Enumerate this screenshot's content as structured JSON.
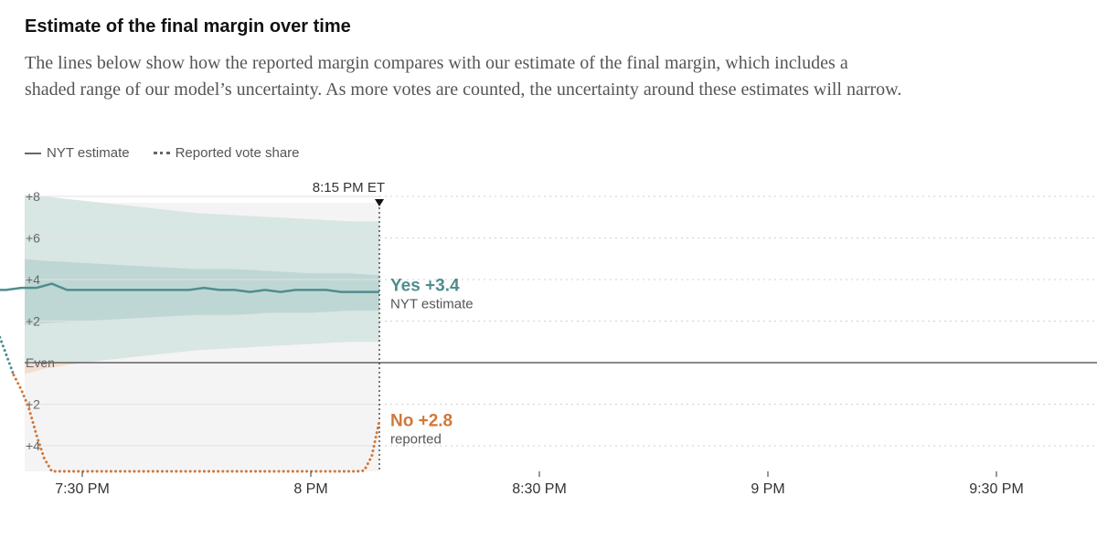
{
  "title": "Estimate of the final margin over time",
  "description": "The lines below show how the reported margin compares with our estimate of the final margin, which includes a shaded range of our model’s uncertainty. As more votes are counted, the uncertainty around these estimates will narrow.",
  "legend": {
    "estimate_label": "NYT estimate",
    "reported_label": "Reported vote share"
  },
  "colors": {
    "yes": "#4f8d8d",
    "no": "#d0783a",
    "band_outer": "#d8e6e4",
    "band_inner": "#bfd7d4",
    "band_no": "#f3dfd0"
  },
  "chart_data": {
    "type": "line",
    "x_unit": "minutes after 7:00 PM ET",
    "xlim": [
      16,
      150
    ],
    "ylim": [
      -7,
      8.5
    ],
    "y_ticks": [
      {
        "value": 8,
        "label": "+8"
      },
      {
        "value": 6,
        "label": "+6"
      },
      {
        "value": 4,
        "label": "+4"
      },
      {
        "value": 2,
        "label": "+2"
      },
      {
        "value": 0,
        "label": "Even"
      },
      {
        "value": -2,
        "label": "+2"
      },
      {
        "value": -4,
        "label": "+4"
      }
    ],
    "x_ticks": [
      {
        "value": 30,
        "label": "7:30 PM"
      },
      {
        "value": 60,
        "label": "8 PM"
      },
      {
        "value": 90,
        "label": "8:30 PM"
      },
      {
        "value": 120,
        "label": "9 PM"
      },
      {
        "value": 150,
        "label": "9:30 PM"
      }
    ],
    "current_time": {
      "value": 69,
      "label": "8:15 PM ET"
    },
    "estimate_label": {
      "value": "Yes +3.4",
      "sub": "NYT estimate"
    },
    "reported_label": {
      "value": "No +2.8",
      "sub": "reported"
    },
    "series": [
      {
        "name": "NYT estimate",
        "x": [
          16,
          17,
          18,
          20,
          22,
          24,
          26,
          28,
          30,
          32,
          34,
          36,
          38,
          40,
          42,
          44,
          46,
          48,
          50,
          52,
          54,
          56,
          58,
          60,
          62,
          64,
          66,
          68,
          69
        ],
        "y": [
          3.6,
          3.6,
          3.5,
          3.5,
          3.6,
          3.6,
          3.8,
          3.5,
          3.5,
          3.5,
          3.5,
          3.5,
          3.5,
          3.5,
          3.5,
          3.5,
          3.6,
          3.5,
          3.5,
          3.4,
          3.5,
          3.4,
          3.5,
          3.5,
          3.5,
          3.4,
          3.4,
          3.4,
          3.4
        ]
      },
      {
        "name": "Reported vote share",
        "x": [
          16,
          17,
          18,
          19,
          20,
          21,
          22,
          23,
          24,
          25,
          26,
          27,
          28,
          29,
          30,
          31,
          32,
          33,
          34,
          50,
          51,
          52,
          53,
          54,
          55,
          56,
          57,
          58,
          59,
          60,
          61,
          62,
          63,
          64,
          65,
          66,
          67,
          68,
          69
        ],
        "y": [
          3.6,
          3.2,
          2.6,
          1.4,
          0.4,
          -0.6,
          -1.3,
          -2.2,
          -3.5,
          -4.6,
          -5.3,
          -6.0,
          -6.8,
          -7.2,
          -7.4,
          -7.5,
          -7.6,
          -7.6,
          -7.6,
          -7.6,
          -7.3,
          -6.8,
          -6.6,
          -6.8,
          -6.7,
          -6.6,
          -6.5,
          -6.6,
          -6.1,
          -6.1,
          -6.0,
          -5.9,
          -5.7,
          -5.6,
          -5.5,
          -5.4,
          -5.2,
          -4.5,
          -2.8
        ]
      }
    ],
    "uncertainty": {
      "x": [
        16,
        18,
        20,
        22,
        25,
        30,
        35,
        40,
        45,
        50,
        55,
        60,
        65,
        69
      ],
      "outer_upper": [
        8.2,
        8.1,
        8.1,
        8.1,
        8.0,
        7.8,
        7.6,
        7.4,
        7.2,
        7.1,
        7.0,
        6.9,
        6.8,
        6.8
      ],
      "outer_lower": [
        -0.9,
        -0.9,
        -0.8,
        -0.6,
        -0.3,
        0.0,
        0.2,
        0.4,
        0.6,
        0.7,
        0.8,
        0.9,
        1.0,
        1.0
      ],
      "inner_upper": [
        5.3,
        5.2,
        5.1,
        5.0,
        4.9,
        4.8,
        4.7,
        4.6,
        4.5,
        4.5,
        4.4,
        4.3,
        4.3,
        4.2
      ],
      "inner_lower": [
        1.6,
        1.6,
        1.7,
        1.8,
        1.9,
        2.0,
        2.1,
        2.2,
        2.3,
        2.3,
        2.4,
        2.4,
        2.5,
        2.5
      ]
    }
  }
}
